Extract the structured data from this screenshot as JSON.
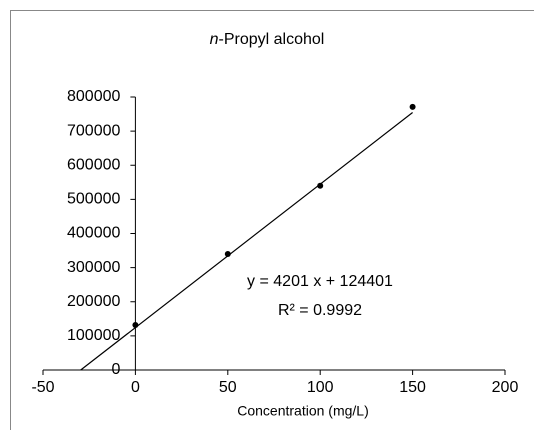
{
  "chart_data": {
    "type": "scatter",
    "title": "n-Propyl alcohol",
    "x_label": "Concentration (mg/L)",
    "series": [
      {
        "name": "n-Propyl alcohol",
        "color": "#000000",
        "x": [
          0,
          50,
          100,
          150
        ],
        "values": [
          132000,
          340000,
          540000,
          771000
        ]
      }
    ],
    "trendline": {
      "color": "#000000",
      "x": [
        -29.6,
        150
      ],
      "values": [
        0,
        754551
      ]
    },
    "annotations": [
      "y = 4201 x + 124401",
      "R² = 0.9992"
    ],
    "xlim": [
      -50,
      200
    ],
    "xticks": [
      -50,
      0,
      50,
      100,
      150,
      200
    ],
    "ylim": [
      0,
      800000
    ],
    "yticks": [
      0,
      100000,
      200000,
      300000,
      400000,
      500000,
      600000,
      700000,
      800000
    ],
    "grid": false
  }
}
